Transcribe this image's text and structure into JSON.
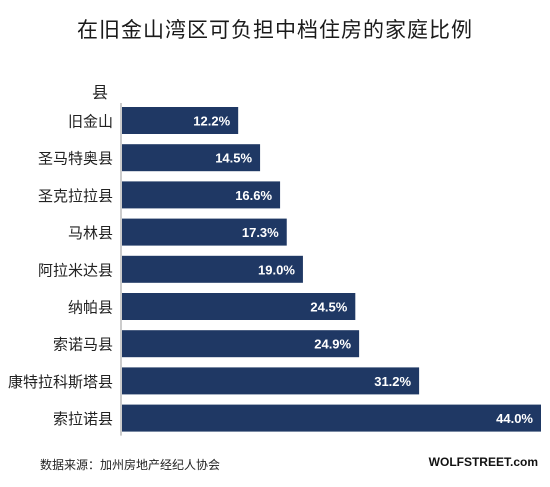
{
  "chart_data": {
    "type": "bar",
    "orientation": "horizontal",
    "title": "在旧金山湾区可负担中档住房的家庭比例",
    "ylabel": "县",
    "xlabel": "",
    "categories": [
      "旧金山",
      "圣马特奥县",
      "圣克拉拉县",
      "马林县",
      "阿拉米达县",
      "纳帕县",
      "索诺马县",
      "康特拉科斯塔县",
      "索拉诺县"
    ],
    "values": [
      12.2,
      14.5,
      16.6,
      17.3,
      19.0,
      24.5,
      24.9,
      31.2,
      44.0
    ],
    "value_labels": [
      "12.2%",
      "14.5%",
      "16.6%",
      "17.3%",
      "19.0%",
      "24.5%",
      "24.9%",
      "31.2%",
      "44.0%"
    ],
    "xlim": [
      0,
      44.0
    ],
    "grid": false,
    "legend": "none",
    "colors": {
      "bar": "#1f3864",
      "bar_label": "#ffffff"
    }
  },
  "footer": {
    "source": "数据来源：加州房地产经纪人协会",
    "brand": "WOLFSTREET.com"
  }
}
